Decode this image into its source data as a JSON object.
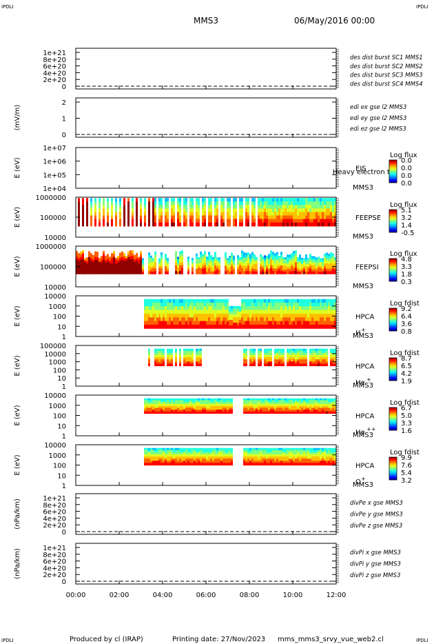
{
  "header": {
    "corner_tl": "IPDLI",
    "corner_tr": "IPDLI",
    "corner_bl": "IPDLI",
    "corner_br": "IPDLI",
    "spacecraft": "MMS3",
    "date": "06/May/2016 00:00"
  },
  "footer": {
    "produced_by": "Produced by cl (IRAP)",
    "printing_date": "Printing date: 27/Nov/2023",
    "file": "mms_mms3_srvy_vue_web2.cl"
  },
  "colors": {
    "mms1": "#0000cc",
    "mms2": "#d000d0",
    "mms3": "#dd0000",
    "mms4": "#00bb00"
  },
  "chart_data": [
    {
      "type": "line",
      "id": "panel1",
      "ylabel": "",
      "yticks": [
        "1e+21",
        "8e+20",
        "6e+20",
        "4e+20",
        "2e+20",
        "0"
      ],
      "legend": [
        {
          "text": "des dist burst SC1 MMS1",
          "color": "#0000cc"
        },
        {
          "text": "des dist burst SC2 MMS2",
          "color": "#d000d0"
        },
        {
          "text": "des dist burst SC3 MMS3",
          "color": "#dd0000"
        },
        {
          "text": "des dist burst SC4 MMS4",
          "color": "#00bb00"
        }
      ]
    },
    {
      "type": "line",
      "id": "panel2",
      "ylabel": "(mV/m)",
      "yticks": [
        "2",
        "1",
        "0"
      ],
      "legend": [
        {
          "text": "edi ex gse l2 MMS3",
          "color": "#dd0000"
        },
        {
          "text": "edi ey gse l2 MMS3",
          "color": "#00bb00"
        },
        {
          "text": "edi ez gse l2 MMS3",
          "color": "#0000cc"
        }
      ]
    },
    {
      "type": "heatmap",
      "id": "panel3",
      "ylabel": "E (eV)",
      "yticks": [
        "1e+07",
        "1e+06",
        "1e+05",
        "1e+04"
      ],
      "instrument": "EIS",
      "spacecraft": "MMS3",
      "extra": "Heavy electron to",
      "cbar_title": "Log flux",
      "cbar_ticks": [
        "0.0",
        "0.0",
        "0.0",
        "0.0"
      ]
    },
    {
      "type": "heatmap",
      "id": "panel4",
      "ylabel": "E (eV)",
      "yticks": [
        "1000000",
        "100000",
        "10000"
      ],
      "instrument": "FEEPSE",
      "spacecraft": "MMS3",
      "cbar_title": "Log flux",
      "cbar_ticks": [
        "5.1",
        "3.2",
        "1.4",
        "-0.5"
      ]
    },
    {
      "type": "heatmap",
      "id": "panel5",
      "ylabel": "E (eV)",
      "yticks": [
        "1000000",
        "100000",
        "10000"
      ],
      "instrument": "FEEPSI",
      "spacecraft": "MMS3",
      "cbar_title": "Log flux",
      "cbar_ticks": [
        "4.8",
        "3.3",
        "1.8",
        "0.3"
      ]
    },
    {
      "type": "heatmap",
      "id": "panel6",
      "ylabel": "E (eV)",
      "yticks": [
        "10000",
        "1000",
        "100",
        "10",
        "1"
      ],
      "instrument": "HPCA",
      "spacecraft": "MMS3",
      "species": "H",
      "charge": "+",
      "cbar_title": "Log fdist",
      "cbar_ticks": [
        "9.2",
        "6.4",
        "3.6",
        "0.8"
      ]
    },
    {
      "type": "heatmap",
      "id": "panel7",
      "ylabel": "E (eV)",
      "yticks": [
        "100000",
        "10000",
        "1000",
        "100",
        "10",
        "1"
      ],
      "instrument": "HPCA",
      "spacecraft": "MMS3",
      "species": "He",
      "charge": "+",
      "cbar_title": "Log fdist",
      "cbar_ticks": [
        "8.7",
        "6.5",
        "4.2",
        "1.9"
      ]
    },
    {
      "type": "heatmap",
      "id": "panel8",
      "ylabel": "E (eV)",
      "yticks": [
        "10000",
        "1000",
        "100",
        "10",
        "1"
      ],
      "instrument": "HPCA",
      "spacecraft": "MMS3",
      "species": "He",
      "charge": "++",
      "cbar_title": "Log fdist",
      "cbar_ticks": [
        "6.7",
        "5.0",
        "3.3",
        "1.6"
      ]
    },
    {
      "type": "heatmap",
      "id": "panel9",
      "ylabel": "E (eV)",
      "yticks": [
        "10000",
        "1000",
        "100",
        "10",
        "1"
      ],
      "instrument": "HPCA",
      "spacecraft": "MMS3",
      "species": "O",
      "charge": "+",
      "cbar_title": "Log fdist",
      "cbar_ticks": [
        "9.9",
        "7.6",
        "5.4",
        "3.2"
      ]
    },
    {
      "type": "line",
      "id": "panel10",
      "ylabel": "(nPa/km)",
      "yticks": [
        "1e+21",
        "8e+20",
        "6e+20",
        "4e+20",
        "2e+20",
        "0"
      ],
      "legend": [
        {
          "text": "divPe x gse MMS3",
          "color": "#dd0000"
        },
        {
          "text": "divPe y gse MMS3",
          "color": "#00bb00"
        },
        {
          "text": "divPe z gse MMS3",
          "color": "#0000cc"
        }
      ]
    },
    {
      "type": "line",
      "id": "panel11",
      "ylabel": "(nPa/km)",
      "yticks": [
        "1e+21",
        "8e+20",
        "6e+20",
        "4e+20",
        "2e+20",
        "0"
      ],
      "legend": [
        {
          "text": "divPi x gse MMS3",
          "color": "#dd0000"
        },
        {
          "text": "divPi y gse MMS3",
          "color": "#00bb00"
        },
        {
          "text": "divPi z gse MMS3",
          "color": "#0000cc"
        }
      ]
    }
  ],
  "xaxis": {
    "ticks": [
      "00:00",
      "02:00",
      "04:00",
      "06:00",
      "08:00",
      "10:00",
      "12:00"
    ]
  }
}
